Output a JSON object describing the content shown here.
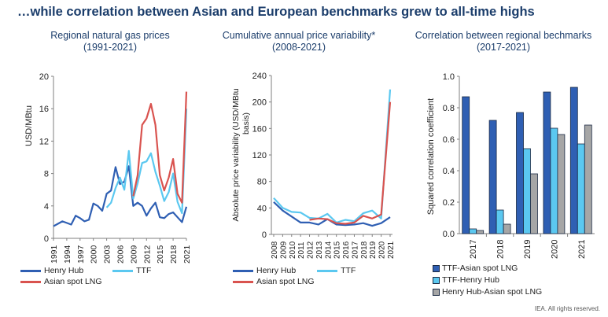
{
  "title": "…while correlation between Asian and European benchmarks grew to all-time highs",
  "source": "IEA. All rights reserved.",
  "chart_data": [
    {
      "type": "line",
      "title": "Regional natural gas prices",
      "subtitle": "(1991-2021)",
      "ylabel": "USD/MBtu",
      "xlabel": "",
      "ylim": [
        0,
        20
      ],
      "yticks": [
        "0",
        "4",
        "8",
        "12",
        "16",
        "20"
      ],
      "x_ticks": [
        "1991",
        "1994",
        "1997",
        "2000",
        "2003",
        "2006",
        "2009",
        "2012",
        "2015",
        "2018",
        "2021"
      ],
      "grid": false,
      "legend": "bottom",
      "series": [
        {
          "name": "Henry Hub",
          "color": "#2f5fb3",
          "points": [
            [
              1991,
              1.5
            ],
            [
              1992,
              1.8
            ],
            [
              1993,
              2.1
            ],
            [
              1994,
              1.9
            ],
            [
              1995,
              1.7
            ],
            [
              1996,
              2.8
            ],
            [
              1997,
              2.5
            ],
            [
              1998,
              2.1
            ],
            [
              1999,
              2.3
            ],
            [
              2000,
              4.3
            ],
            [
              2001,
              4.0
            ],
            [
              2002,
              3.4
            ],
            [
              2003,
              5.5
            ],
            [
              2004,
              5.9
            ],
            [
              2005,
              8.8
            ],
            [
              2006,
              6.7
            ],
            [
              2007,
              7.0
            ],
            [
              2008,
              8.9
            ],
            [
              2009,
              4.0
            ],
            [
              2010,
              4.4
            ],
            [
              2011,
              4.0
            ],
            [
              2012,
              2.8
            ],
            [
              2013,
              3.7
            ],
            [
              2014,
              4.4
            ],
            [
              2015,
              2.6
            ],
            [
              2016,
              2.5
            ],
            [
              2017,
              3.0
            ],
            [
              2018,
              3.2
            ],
            [
              2019,
              2.6
            ],
            [
              2020,
              2.0
            ],
            [
              2021,
              3.9
            ]
          ]
        },
        {
          "name": "TTF",
          "color": "#5bc8f0",
          "points": [
            [
              2003,
              3.8
            ],
            [
              2004,
              4.4
            ],
            [
              2005,
              6.2
            ],
            [
              2006,
              7.5
            ],
            [
              2007,
              6.0
            ],
            [
              2008,
              10.8
            ],
            [
              2009,
              4.9
            ],
            [
              2010,
              6.8
            ],
            [
              2011,
              9.3
            ],
            [
              2012,
              9.5
            ],
            [
              2013,
              10.5
            ],
            [
              2014,
              8.2
            ],
            [
              2015,
              6.5
            ],
            [
              2016,
              4.6
            ],
            [
              2017,
              5.7
            ],
            [
              2018,
              8.0
            ],
            [
              2019,
              4.5
            ],
            [
              2020,
              3.1
            ],
            [
              2021,
              16.0
            ]
          ]
        },
        {
          "name": "Asian spot LNG",
          "color": "#d9534f",
          "points": [
            [
              2009,
              5.2
            ],
            [
              2010,
              7.8
            ],
            [
              2011,
              14.0
            ],
            [
              2012,
              14.8
            ],
            [
              2013,
              16.6
            ],
            [
              2014,
              14.0
            ],
            [
              2015,
              7.8
            ],
            [
              2016,
              5.9
            ],
            [
              2017,
              7.5
            ],
            [
              2018,
              9.8
            ],
            [
              2019,
              5.5
            ],
            [
              2020,
              4.4
            ],
            [
              2021,
              18.1
            ]
          ]
        }
      ]
    },
    {
      "type": "line",
      "title": "Cumulative annual price variability*",
      "subtitle": "(2008-2021)",
      "ylabel": "Absolute price variability (USD/MBtu basis)",
      "xlabel": "",
      "ylim": [
        0,
        240
      ],
      "yticks": [
        "0",
        "40",
        "80",
        "120",
        "160",
        "200",
        "240"
      ],
      "x_ticks": [
        "2008",
        "2009",
        "2010",
        "2011",
        "2012",
        "2013",
        "2014",
        "2015",
        "2016",
        "2017",
        "2018",
        "2019",
        "2020",
        "2021"
      ],
      "grid": false,
      "legend": "bottom",
      "series": [
        {
          "name": "Henry Hub",
          "color": "#2f5fb3",
          "values": [
            49,
            36,
            27,
            18,
            18,
            15,
            23,
            15,
            14,
            15,
            17,
            13,
            17,
            26
          ]
        },
        {
          "name": "TTF",
          "color": "#5bc8f0",
          "values": [
            55,
            40,
            34,
            33,
            25,
            24,
            31,
            18,
            22,
            20,
            32,
            36,
            24,
            219
          ]
        },
        {
          "name": "Asian spot LNG",
          "color": "#d9534f",
          "values": [
            null,
            null,
            null,
            null,
            22,
            24,
            23,
            17,
            16,
            18,
            28,
            24,
            30,
            200
          ]
        }
      ]
    },
    {
      "type": "bar",
      "title": "Correlation between regional bechmarks",
      "subtitle": "(2017-2021)",
      "ylabel": "Squared correlation coefficient",
      "xlabel": "",
      "ylim": [
        0,
        1.0
      ],
      "yticks": [
        "0.0",
        "0.2",
        "0.4",
        "0.6",
        "0.8",
        "1.0"
      ],
      "categories": [
        "2017",
        "2018",
        "2019",
        "2020",
        "2021"
      ],
      "grid": false,
      "legend": "bottom",
      "series": [
        {
          "name": "TTF-Asian spot LNG",
          "color": "#2f5fb3",
          "values": [
            0.87,
            0.72,
            0.77,
            0.9,
            0.93
          ]
        },
        {
          "name": "TTF-Henry Hub",
          "color": "#5bc8f0",
          "values": [
            0.03,
            0.15,
            0.54,
            0.67,
            0.57
          ]
        },
        {
          "name": "Henry Hub-Asian spot LNG",
          "color": "#a6a6a6",
          "values": [
            0.02,
            0.06,
            0.38,
            0.63,
            0.69
          ]
        }
      ]
    }
  ]
}
